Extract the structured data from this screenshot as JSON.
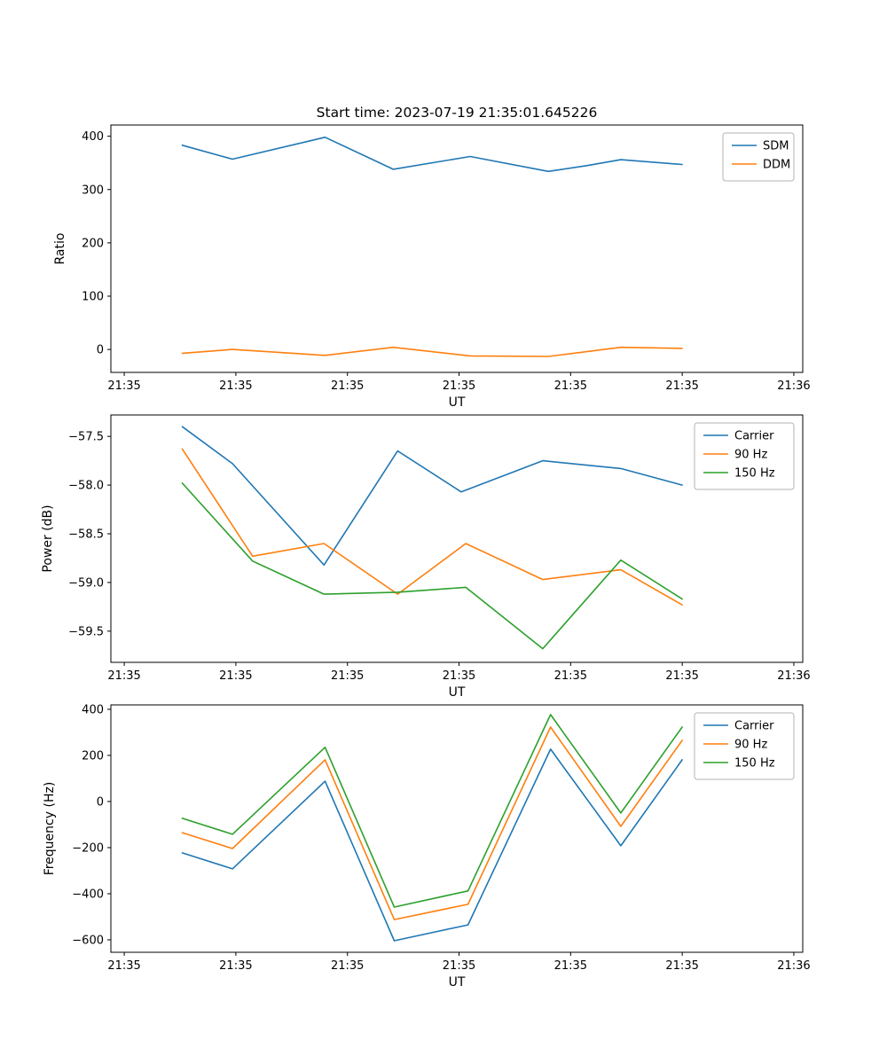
{
  "figure": {
    "title": "Start time: 2023-07-19 21:35:01.645226",
    "background": "#ffffff",
    "colors": {
      "c0": "#1f77b4",
      "c1": "#ff7f0e",
      "c2": "#2ca02c"
    }
  },
  "chart_data": [
    {
      "type": "line",
      "title": "Start time: 2023-07-19 21:35:01.645226",
      "xlabel": "UT",
      "ylabel": "Ratio",
      "xlim": [
        -1.2,
        60.8
      ],
      "ylim": [
        -43,
        421
      ],
      "xticks": [
        0,
        10,
        20,
        30,
        40,
        50,
        60
      ],
      "xtick_labels": [
        "21:35",
        "21:35",
        "21:35",
        "21:35",
        "21:35",
        "21:35",
        "21:36"
      ],
      "yticks": [
        0,
        100,
        200,
        300,
        400
      ],
      "ytick_labels": [
        "0",
        "100",
        "200",
        "300",
        "400"
      ],
      "legend_position": "upper right",
      "grid": false,
      "series": [
        {
          "name": "SDM",
          "color": "#1f77b4",
          "x": [
            5.2,
            9.7,
            18.0,
            24.1,
            31.0,
            38.0,
            41.5,
            44.5,
            50.0
          ],
          "y": [
            383,
            357,
            398,
            338,
            362,
            334,
            345,
            356,
            347
          ]
        },
        {
          "name": "DDM",
          "color": "#ff7f0e",
          "x": [
            5.2,
            9.7,
            18.0,
            24.1,
            31.0,
            38.0,
            44.5,
            50.0
          ],
          "y": [
            -7,
            0,
            -11,
            4,
            -12,
            -13,
            4,
            2
          ]
        }
      ]
    },
    {
      "type": "line",
      "title": "",
      "xlabel": "UT",
      "ylabel": "Power (dB)",
      "xlim": [
        -1.2,
        60.8
      ],
      "ylim": [
        -59.82,
        -57.28
      ],
      "xticks": [
        0,
        10,
        20,
        30,
        40,
        50,
        60
      ],
      "xtick_labels": [
        "21:35",
        "21:35",
        "21:35",
        "21:35",
        "21:35",
        "21:35",
        "21:36"
      ],
      "yticks": [
        -57.5,
        -58.0,
        -58.5,
        -59.0,
        -59.5
      ],
      "ytick_labels": [
        "−57.5",
        "−58.0",
        "−58.5",
        "−59.0",
        "−59.5"
      ],
      "legend_position": "upper right",
      "grid": false,
      "series": [
        {
          "name": "Carrier",
          "color": "#1f77b4",
          "x": [
            5.2,
            9.7,
            17.9,
            24.5,
            30.2,
            37.5,
            44.5,
            50.0
          ],
          "y": [
            -57.4,
            -57.78,
            -58.82,
            -57.65,
            -58.07,
            -57.75,
            -57.83,
            -58.0
          ]
        },
        {
          "name": "90 Hz",
          "color": "#ff7f0e",
          "x": [
            5.2,
            11.5,
            17.9,
            24.5,
            30.6,
            37.5,
            44.5,
            50.0
          ],
          "y": [
            -57.63,
            -58.73,
            -58.6,
            -59.12,
            -58.6,
            -58.97,
            -58.87,
            -59.23
          ]
        },
        {
          "name": "150 Hz",
          "color": "#2ca02c",
          "x": [
            5.2,
            11.5,
            17.9,
            24.5,
            30.6,
            37.5,
            44.5,
            50.0
          ],
          "y": [
            -57.98,
            -58.78,
            -59.12,
            -59.1,
            -59.05,
            -59.68,
            -58.77,
            -59.17
          ]
        }
      ]
    },
    {
      "type": "line",
      "title": "",
      "xlabel": "UT",
      "ylabel": "Frequency (Hz)",
      "xlim": [
        -1.2,
        60.8
      ],
      "ylim": [
        -654,
        419
      ],
      "xticks": [
        0,
        10,
        20,
        30,
        40,
        50,
        60
      ],
      "xtick_labels": [
        "21:35",
        "21:35",
        "21:35",
        "21:35",
        "21:35",
        "21:35",
        "21:36"
      ],
      "yticks": [
        -600,
        -400,
        -200,
        0,
        200,
        400
      ],
      "ytick_labels": [
        "−600",
        "−400",
        "−200",
        "0",
        "200",
        "400"
      ],
      "legend_position": "upper right",
      "grid": false,
      "series": [
        {
          "name": "Carrier",
          "color": "#1f77b4",
          "x": [
            5.2,
            9.7,
            18.0,
            24.2,
            30.8,
            38.2,
            44.5,
            50.0
          ],
          "y": [
            -223,
            -292,
            88,
            -604,
            -535,
            227,
            -192,
            181
          ]
        },
        {
          "name": "90 Hz",
          "color": "#ff7f0e",
          "x": [
            5.2,
            9.7,
            18.0,
            24.2,
            30.8,
            38.2,
            44.5,
            50.0
          ],
          "y": [
            -135,
            -204,
            181,
            -512,
            -446,
            323,
            -108,
            265
          ]
        },
        {
          "name": "150 Hz",
          "color": "#2ca02c",
          "x": [
            5.2,
            9.7,
            18.0,
            24.2,
            30.8,
            38.2,
            44.5,
            50.0
          ],
          "y": [
            -73,
            -142,
            235,
            -458,
            -388,
            377,
            -50,
            323
          ]
        }
      ]
    }
  ]
}
